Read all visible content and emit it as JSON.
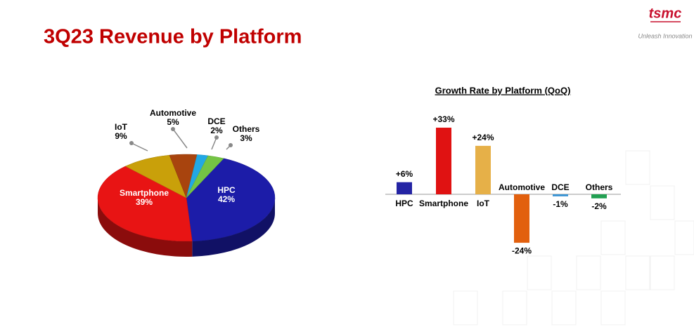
{
  "header": {
    "title": "3Q23 Revenue by Platform",
    "logo": "tsmc",
    "tagline": "Unleash Innovation"
  },
  "chart_data": [
    {
      "type": "pie",
      "categories": [
        "HPC",
        "Smartphone",
        "IoT",
        "Automotive",
        "DCE",
        "Others"
      ],
      "values": [
        42,
        39,
        9,
        5,
        2,
        3
      ],
      "value_labels": [
        "42%",
        "39%",
        "9%",
        "5%",
        "2%",
        "3%"
      ],
      "colors": [
        "#1c1ca8",
        "#e81414",
        "#c9a00a",
        "#a8440e",
        "#22a8e4",
        "#74c444"
      ]
    },
    {
      "type": "bar",
      "title": "Growth Rate by Platform (QoQ)",
      "categories": [
        "HPC",
        "Smartphone",
        "IoT",
        "Automotive",
        "DCE",
        "Others"
      ],
      "values": [
        6,
        33,
        24,
        -24,
        -1,
        -2
      ],
      "value_labels": [
        "+6%",
        "+33%",
        "+24%",
        "-24%",
        "-1%",
        "-2%"
      ],
      "colors": [
        "#2424a4",
        "#e01212",
        "#e6b048",
        "#e2600e",
        "#3a94d4",
        "#22a052"
      ]
    }
  ]
}
